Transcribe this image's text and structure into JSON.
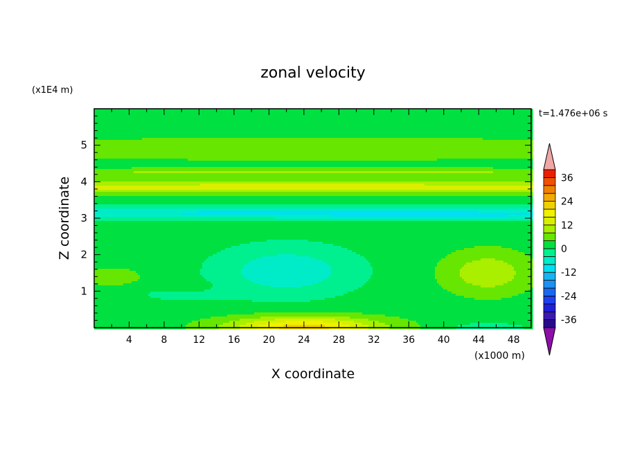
{
  "chart_data": {
    "type": "heatmap",
    "title": "zonal velocity",
    "xlabel": "X coordinate",
    "ylabel": "Z coordinate",
    "x_unit": "(x1000 m)",
    "y_unit": "(x1E4 m)",
    "time_label": "t=1.476e+06 s",
    "xlim": [
      0,
      50
    ],
    "ylim": [
      0,
      6
    ],
    "x_ticks": [
      "4",
      "8",
      "12",
      "16",
      "20",
      "24",
      "28",
      "32",
      "36",
      "40",
      "44",
      "48"
    ],
    "y_ticks": [
      "1",
      "2",
      "3",
      "4",
      "5"
    ],
    "colorbar": {
      "levels": [
        -40,
        -36,
        -32,
        -28,
        -24,
        -20,
        -16,
        -12,
        -8,
        -4,
        0,
        4,
        8,
        12,
        16,
        20,
        24,
        28,
        32,
        36,
        40
      ],
      "colors": [
        "#2a0a8c",
        "#3a1ab0",
        "#2020d8",
        "#1e40ee",
        "#1a68f0",
        "#1e90f0",
        "#19b4f0",
        "#00e0f0",
        "#00ecc8",
        "#00f090",
        "#00e040",
        "#66e600",
        "#aaee00",
        "#d8f000",
        "#f0f000",
        "#f0d000",
        "#f0aa00",
        "#f08000",
        "#f05000",
        "#e82000"
      ],
      "below_color": "#8e0ea8",
      "above_color": "#f0a6a6",
      "tick_values": [
        -36,
        -24,
        -12,
        0,
        12,
        24,
        36
      ],
      "tick_labels": [
        "-36",
        "-24",
        "-12",
        "0",
        "12",
        "24",
        "36"
      ]
    }
  }
}
